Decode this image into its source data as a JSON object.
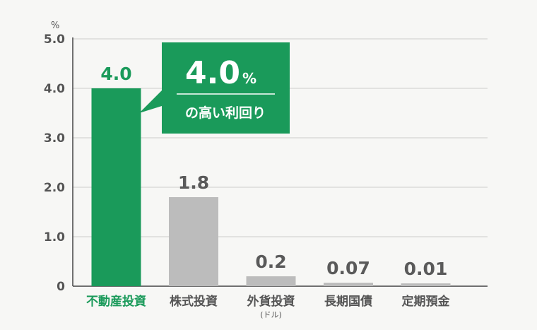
{
  "chart_data": {
    "type": "bar",
    "unit": "%",
    "categories": [
      "不動産投資",
      "株式投資",
      "外貨投資",
      "長期国債",
      "定期預金"
    ],
    "category_sublabels": [
      "",
      "",
      "(ドル)",
      "",
      ""
    ],
    "values": [
      4.0,
      1.8,
      0.2,
      0.07,
      0.01
    ],
    "value_labels": [
      "4.0",
      "1.8",
      "0.2",
      "0.07",
      "0.01"
    ],
    "y_ticks": [
      "0",
      "1.0",
      "2.0",
      "3.0",
      "4.0",
      "5.0"
    ],
    "ylim": [
      0,
      5
    ],
    "grid": true,
    "highlight_index": 0,
    "colors": {
      "highlight": "#1a9a5a",
      "bar": "#bcbcbc",
      "value_text": "#5a5a5a",
      "category_text": "#555555",
      "grid": "#cccccc",
      "axis": "#444444"
    },
    "callout": {
      "value": "4.0",
      "unit": "%",
      "text": "の高い利回り",
      "color": "#1a9a5a"
    }
  }
}
